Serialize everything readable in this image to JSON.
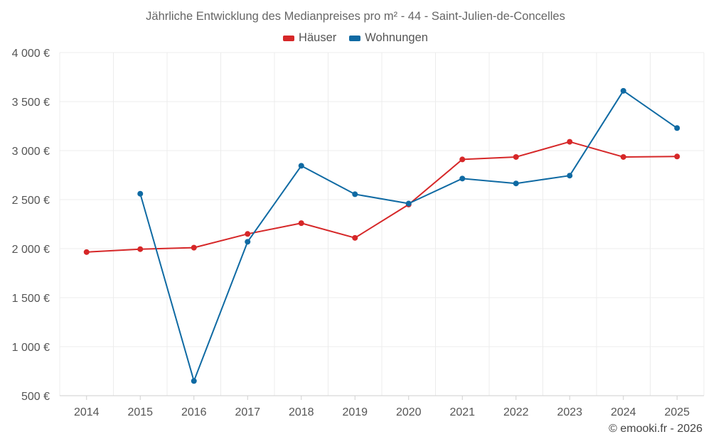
{
  "chart_data": {
    "type": "line",
    "title": "Jährliche Entwicklung des Medianpreises pro m² - 44 - Saint-Julien-de-Concelles",
    "categories": [
      "2014",
      "2015",
      "2016",
      "2017",
      "2018",
      "2019",
      "2020",
      "2021",
      "2022",
      "2023",
      "2024",
      "2025"
    ],
    "series": [
      {
        "name": "Häuser",
        "color": "#d62728",
        "values": [
          1965,
          1995,
          2010,
          2150,
          2260,
          2110,
          2450,
          2910,
          2935,
          3090,
          2935,
          2940
        ]
      },
      {
        "name": "Wohnungen",
        "color": "#0f6aa3",
        "values": [
          null,
          2560,
          650,
          2070,
          2845,
          2555,
          2460,
          2715,
          2665,
          2745,
          3610,
          3230
        ]
      }
    ],
    "ylim": [
      500,
      4000
    ],
    "yticks": [
      500,
      1000,
      1500,
      2000,
      2500,
      3000,
      3500,
      4000
    ],
    "ytick_labels": [
      "500 €",
      "1 000 €",
      "1 500 €",
      "2 000 €",
      "2 500 €",
      "3 000 €",
      "3 500 €",
      "4 000 €"
    ],
    "xlabel": "",
    "ylabel": "",
    "grid": true,
    "legend_position": "top-center"
  },
  "credit": "© emooki.fr - 2026"
}
